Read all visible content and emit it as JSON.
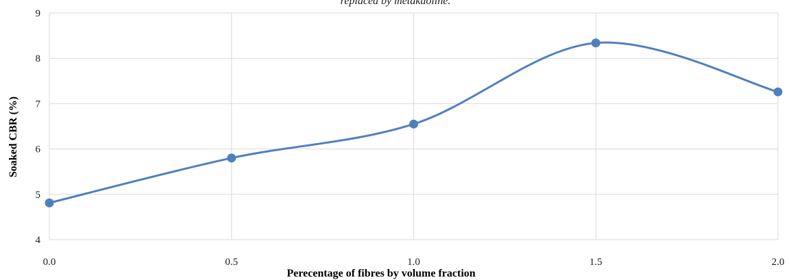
{
  "chart_data": {
    "type": "line",
    "title": "replaced by metakaoline.",
    "xlabel": "Perecentage of fibres by volume fraction",
    "ylabel": "Soaked CBR (%)",
    "x": [
      0.0,
      0.5,
      1.0,
      1.5,
      2.0
    ],
    "x_tick_labels": [
      "0.0",
      "0.5",
      "1.0",
      "1.5",
      "2.0"
    ],
    "y_tick_labels": [
      "4",
      "5",
      "6",
      "7",
      "8",
      "9"
    ],
    "xlim": [
      0,
      2
    ],
    "ylim": [
      4,
      9
    ],
    "grid": true,
    "smoothed": true,
    "series": [
      {
        "values": [
          4.81,
          5.8,
          6.55,
          8.34,
          7.26
        ],
        "color": "#4f7fbf"
      }
    ]
  }
}
